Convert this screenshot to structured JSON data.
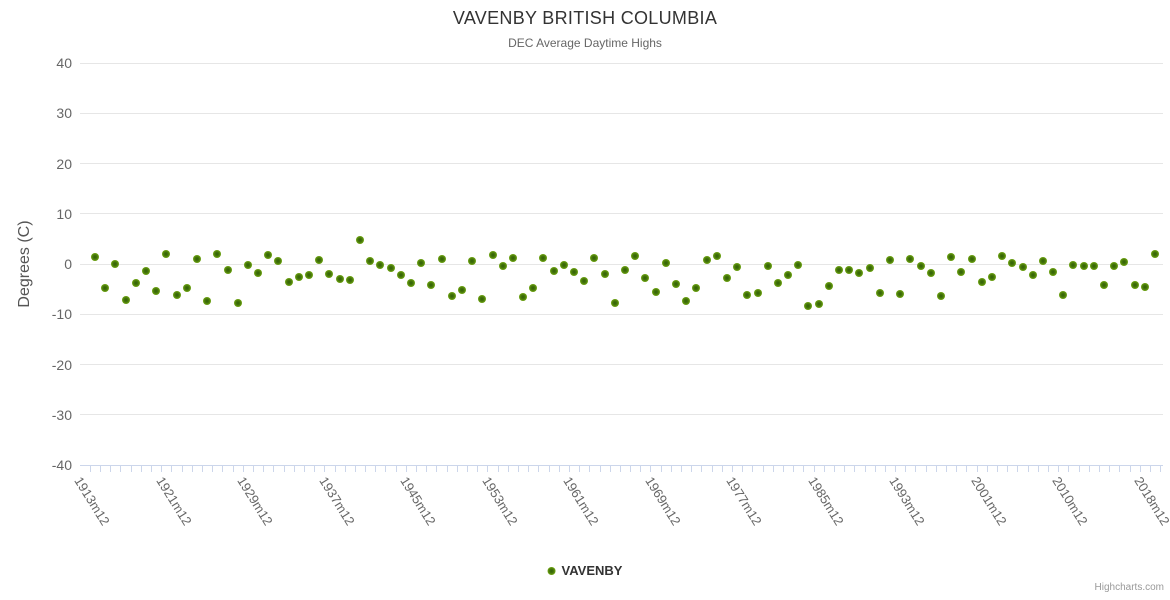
{
  "chart": {
    "credit": "Highcharts.com"
  },
  "chart_data": {
    "type": "scatter",
    "title": "VAVENBY BRITISH COLUMBIA",
    "subtitle": "DEC Average Daytime Highs",
    "xlabel": "",
    "ylabel": "Degrees (C)",
    "ylim": [
      -40,
      40
    ],
    "yticks": [
      40,
      30,
      20,
      10,
      0,
      -10,
      -20,
      -30,
      -40
    ],
    "grid": true,
    "legend_position": "bottom-center",
    "x_label_every": 8,
    "marker_color": "#7ab516",
    "axis_color": "#ccd6eb",
    "grid_color": "#e6e6e6",
    "categories": [
      "1913m12",
      "1914m12",
      "1915m12",
      "1916m12",
      "1917m12",
      "1918m12",
      "1919m12",
      "1920m12",
      "1921m12",
      "1922m12",
      "1923m12",
      "1924m12",
      "1925m12",
      "1926m12",
      "1927m12",
      "1928m12",
      "1929m12",
      "1930m12",
      "1931m12",
      "1932m12",
      "1933m12",
      "1934m12",
      "1935m12",
      "1936m12",
      "1937m12",
      "1938m12",
      "1939m12",
      "1940m12",
      "1941m12",
      "1942m12",
      "1943m12",
      "1944m12",
      "1945m12",
      "1946m12",
      "1947m12",
      "1948m12",
      "1949m12",
      "1950m12",
      "1951m12",
      "1952m12",
      "1953m12",
      "1954m12",
      "1955m12",
      "1956m12",
      "1957m12",
      "1958m12",
      "1959m12",
      "1960m12",
      "1961m12",
      "1962m12",
      "1963m12",
      "1964m12",
      "1965m12",
      "1966m12",
      "1967m12",
      "1968m12",
      "1969m12",
      "1970m12",
      "1971m12",
      "1972m12",
      "1973m12",
      "1974m12",
      "1975m12",
      "1976m12",
      "1977m12",
      "1978m12",
      "1979m12",
      "1980m12",
      "1981m12",
      "1982m12",
      "1983m12",
      "1984m12",
      "1985m12",
      "1986m12",
      "1987m12",
      "1988m12",
      "1989m12",
      "1990m12",
      "1991m12",
      "1992m12",
      "1993m12",
      "1994m12",
      "1995m12",
      "1996m12",
      "1997m12",
      "1998m12",
      "1999m12",
      "2000m12",
      "2001m12",
      "2003m12",
      "2004m12",
      "2005m12",
      "2006m12",
      "2007m12",
      "2008m12",
      "2009m12",
      "2010m12",
      "2011m12",
      "2012m12",
      "2013m12",
      "2014m12",
      "2015m12",
      "2016m12",
      "2017m12",
      "2018m12"
    ],
    "series": [
      {
        "name": "VAVENBY",
        "values": [
          1.3,
          -4.8,
          0.0,
          -7.2,
          -3.8,
          -1.3,
          -5.3,
          2.0,
          -6.2,
          -4.7,
          1.0,
          -7.4,
          1.9,
          -1.1,
          -7.8,
          -0.1,
          -1.7,
          1.7,
          0.5,
          -3.5,
          -2.5,
          -2.1,
          0.8,
          -1.9,
          -3.0,
          -3.2,
          4.8,
          0.5,
          -0.1,
          -0.7,
          -2.2,
          -3.8,
          0.1,
          -4.2,
          0.9,
          -6.3,
          -5.2,
          0.6,
          -7.0,
          1.8,
          -0.3,
          1.1,
          -6.5,
          -4.7,
          1.1,
          -1.3,
          -0.1,
          -1.5,
          -3.3,
          1.2,
          -2.0,
          -7.7,
          -1.2,
          1.6,
          -2.7,
          -5.5,
          0.1,
          -4.0,
          -7.4,
          -4.8,
          0.8,
          1.5,
          -2.8,
          -0.5,
          -6.2,
          -5.7,
          -0.4,
          -3.7,
          -2.1,
          -0.2,
          -8.4,
          -8.0,
          -4.3,
          -1.1,
          -1.1,
          -1.7,
          -0.7,
          -5.8,
          0.7,
          -6.0,
          0.9,
          -0.3,
          -1.7,
          -6.3,
          1.3,
          -1.5,
          0.9,
          -3.6,
          -2.5,
          1.6,
          0.1,
          -0.5,
          -2.1,
          0.6,
          -1.5,
          -6.2,
          -0.1,
          -0.3,
          -0.3,
          -4.2,
          -0.3,
          0.3,
          -4.2,
          -4.5,
          1.9
        ]
      }
    ]
  }
}
